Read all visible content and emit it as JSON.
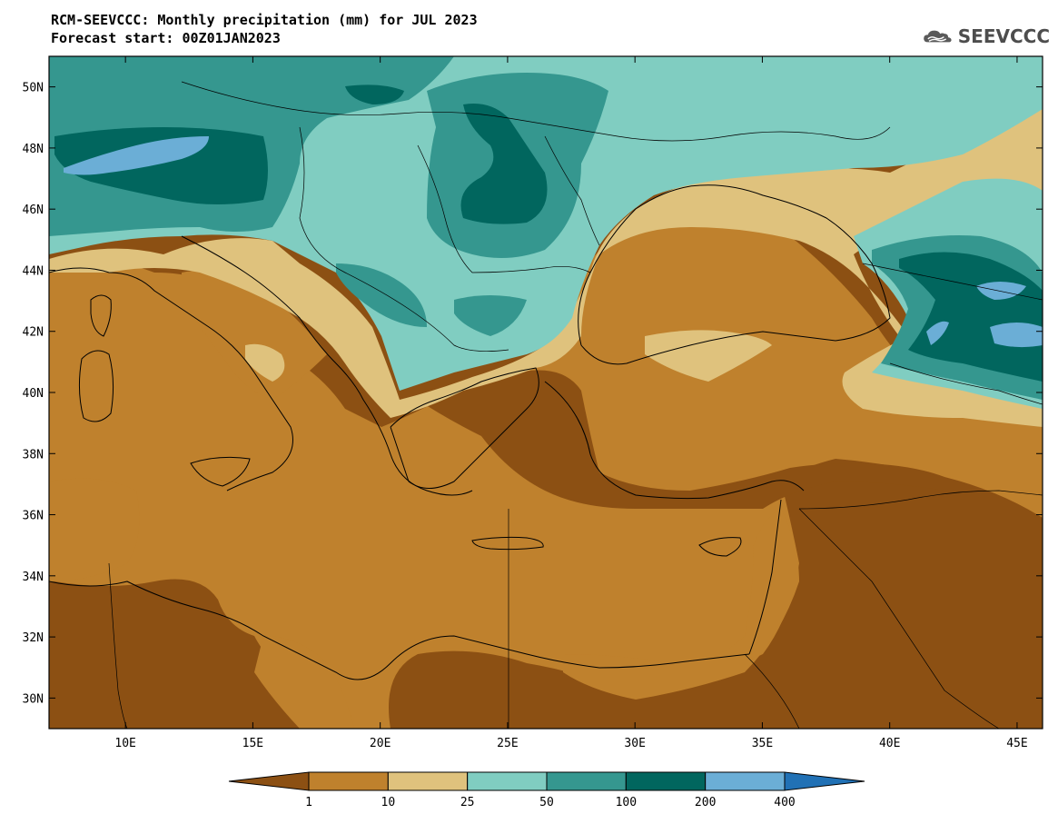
{
  "title": {
    "line1": "RCM-SEEVCCC: Monthly precipitation (mm) for JUL 2023",
    "line2": "Forecast start: 00Z01JAN2023"
  },
  "logo": {
    "text": "SEEVCCC",
    "icon": "cloud-logo-icon"
  },
  "map": {
    "lat_labels": [
      "50N",
      "48N",
      "46N",
      "44N",
      "42N",
      "40N",
      "38N",
      "36N",
      "34N",
      "32N",
      "30N"
    ],
    "lon_labels": [
      "10E",
      "15E",
      "20E",
      "25E",
      "30E",
      "35E",
      "40E",
      "45E"
    ],
    "lon_range": [
      7,
      46
    ],
    "lat_range": [
      29,
      51
    ]
  },
  "colorbar": {
    "labels": [
      "1",
      "10",
      "25",
      "50",
      "100",
      "200",
      "400"
    ],
    "colors": [
      "#8c5013",
      "#bf812d",
      "#dfc27d",
      "#80cdc1",
      "#35978f",
      "#01665e",
      "#6baed6",
      "#2171b5"
    ]
  }
}
